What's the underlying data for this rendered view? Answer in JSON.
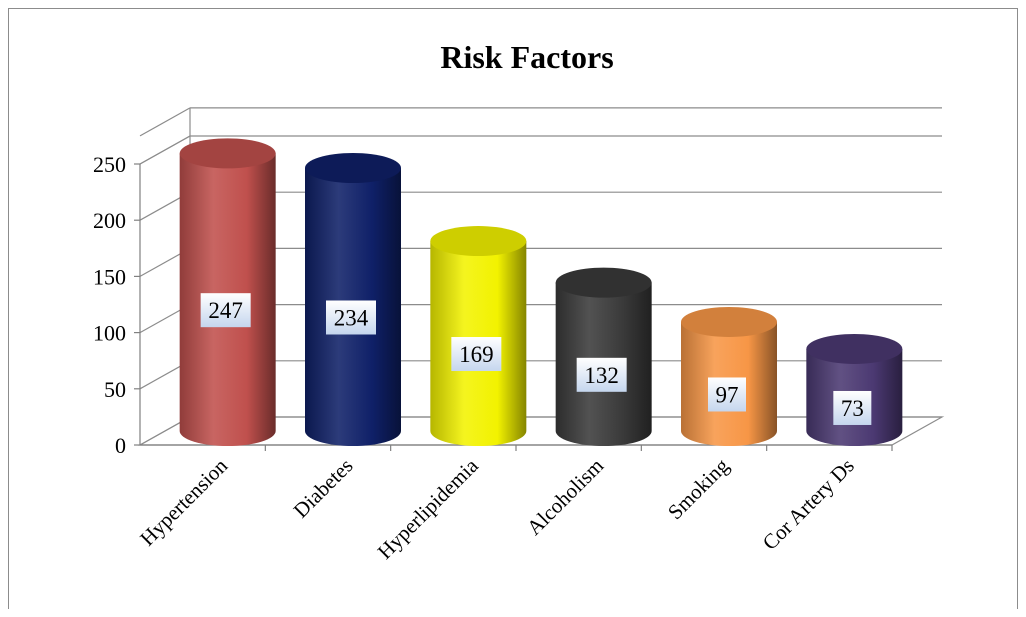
{
  "chart_data": {
    "type": "bar",
    "style": "3d-cylinder",
    "title": "Risk Factors",
    "xlabel": "",
    "ylabel": "",
    "categories": [
      "Hypertension",
      "Diabetes",
      "Hyperlipidemia",
      "Alcoholism",
      "Smoking",
      "Cor Artery Ds"
    ],
    "values": [
      247,
      234,
      169,
      132,
      97,
      73
    ],
    "data_labels": [
      "247",
      "234",
      "169",
      "132",
      "97",
      "73"
    ],
    "ylim": [
      0,
      250
    ],
    "yticks": [
      "0",
      "50",
      "100",
      "150",
      "200",
      "250"
    ],
    "grid": true,
    "legend": "none",
    "colors": [
      "#c0504d",
      "#0f2068",
      "#f2f200",
      "#3a3a3a",
      "#f79646",
      "#4b3972"
    ]
  }
}
